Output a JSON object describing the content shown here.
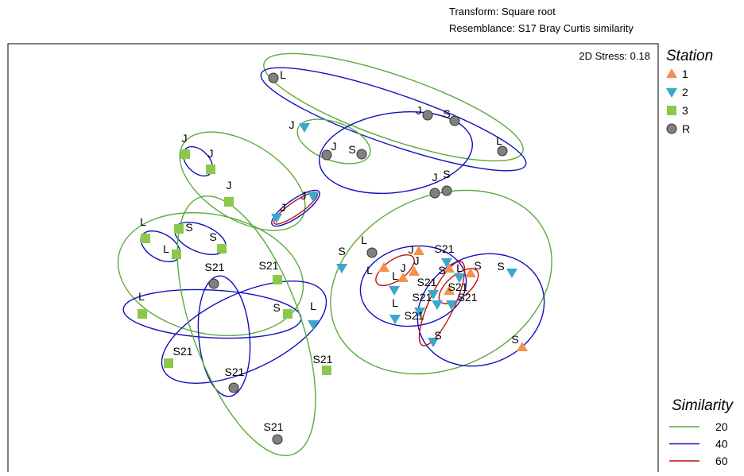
{
  "header": {
    "transform": "Transform: Square root",
    "resemblance": "Resemblance: S17 Bray Curtis similarity"
  },
  "stress": "2D Stress: 0.18",
  "legend_station": {
    "title": "Station",
    "items": [
      "1",
      "2",
      "3",
      "R"
    ]
  },
  "legend_similarity": {
    "title": "Similarity",
    "items": [
      "20",
      "40",
      "60"
    ]
  },
  "points": [
    {
      "label": "L",
      "station": "R"
    },
    {
      "label": "J",
      "station": "R"
    },
    {
      "label": "S",
      "station": "R"
    },
    {
      "label": "L",
      "station": "R"
    },
    {
      "label": "J",
      "station": "R"
    },
    {
      "label": "S",
      "station": "R"
    },
    {
      "label": "J",
      "station": "R"
    },
    {
      "label": "S",
      "station": "R"
    },
    {
      "label": "J",
      "station": "2"
    },
    {
      "label": "J",
      "station": "3"
    },
    {
      "label": "J",
      "station": "3"
    },
    {
      "label": "J",
      "station": "3"
    },
    {
      "label": "J",
      "station": "2"
    },
    {
      "label": "J",
      "station": "2"
    },
    {
      "label": "L",
      "station": "3"
    },
    {
      "label": "S",
      "station": "3"
    },
    {
      "label": "L",
      "station": "3"
    },
    {
      "label": "S",
      "station": "3"
    },
    {
      "label": "S21",
      "station": "R"
    },
    {
      "label": "S21",
      "station": "3"
    },
    {
      "label": "L",
      "station": "3"
    },
    {
      "label": "S",
      "station": "3"
    },
    {
      "label": "L",
      "station": "2"
    },
    {
      "label": "S21",
      "station": "3"
    },
    {
      "label": "S21",
      "station": "R"
    },
    {
      "label": "S21",
      "station": "3"
    },
    {
      "label": "S21",
      "station": "R"
    },
    {
      "label": "S",
      "station": "2"
    },
    {
      "label": "L",
      "station": "R"
    },
    {
      "label": "J",
      "station": "1"
    },
    {
      "label": "S21",
      "station": "2"
    },
    {
      "label": "L",
      "station": "1"
    },
    {
      "label": "J",
      "station": "1"
    },
    {
      "label": "J",
      "station": "1"
    },
    {
      "label": "L",
      "station": "2"
    },
    {
      "label": "L",
      "station": "2"
    },
    {
      "label": "S",
      "station": "1"
    },
    {
      "label": "L",
      "station": "2"
    },
    {
      "label": "S",
      "station": "1"
    },
    {
      "label": "S",
      "station": "2"
    },
    {
      "label": "S21",
      "station": "2"
    },
    {
      "label": "S21",
      "station": "2"
    },
    {
      "label": "S21",
      "station": "2"
    },
    {
      "label": "S21",
      "station": "1"
    },
    {
      "label": "S21",
      "station": "2"
    },
    {
      "label": "S",
      "station": "2"
    },
    {
      "label": "S",
      "station": "1"
    }
  ]
}
